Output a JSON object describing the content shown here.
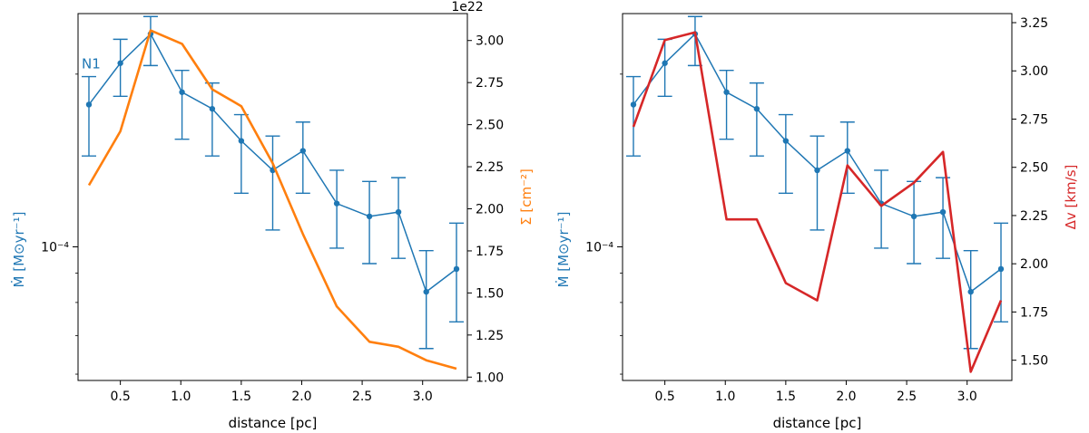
{
  "colors": {
    "mdot": "#1f77b4",
    "sigma": "#ff7f0e",
    "dv": "#d62728",
    "axis": "#000000"
  },
  "chart_data": [
    {
      "type": "line",
      "xlabel": "distance [pc]",
      "x_ticks": [
        "0.5",
        "1.0",
        "1.5",
        "2.0",
        "2.5",
        "3.0"
      ],
      "xlim": [
        0.15,
        3.37
      ],
      "annotation": "N1",
      "left_axis": {
        "label_text": "Ṁ [M⊙yr⁻¹]",
        "tick_label": "10⁻⁴",
        "tick_value": 0.0001,
        "scale": "log",
        "ylim": [
          5.85e-05,
          0.000255
        ]
      },
      "right_axis": {
        "label_text": "Σ [cm⁻²]",
        "offset_text": "1e22",
        "ticks": [
          "1.00",
          "1.25",
          "1.50",
          "1.75",
          "2.00",
          "2.25",
          "2.50",
          "2.75",
          "3.00"
        ],
        "ylim": [
          0.98,
          3.16
        ]
      },
      "series": [
        {
          "name": "Mdot",
          "axis": "left",
          "x": [
            0.24,
            0.5,
            0.75,
            1.01,
            1.26,
            1.5,
            1.76,
            2.01,
            2.29,
            2.56,
            2.8,
            3.03,
            3.28
          ],
          "values": [
            0.000177,
            0.000209,
            0.000235,
            0.000186,
            0.000174,
            0.000153,
            0.000136,
            0.000147,
            0.000119,
            0.000113,
            0.000115,
            8.35e-05,
            9.15e-05
          ],
          "err_low": [
            0.000144,
            0.000183,
            0.000207,
            0.000154,
            0.000144,
            0.000124,
            0.000107,
            0.000124,
            9.95e-05,
            9.35e-05,
            9.55e-05,
            6.65e-05,
            7.4e-05
          ],
          "err_high": [
            0.000198,
            0.00023,
            0.000252,
            0.000203,
            0.000193,
            0.00017,
            0.000156,
            0.000165,
            0.000136,
            0.00013,
            0.000132,
            9.85e-05,
            0.00011
          ]
        },
        {
          "name": "Sigma",
          "axis": "right",
          "x": [
            0.24,
            0.5,
            0.75,
            1.01,
            1.26,
            1.5,
            1.76,
            2.01,
            2.29,
            2.56,
            2.8,
            3.03,
            3.28
          ],
          "values": [
            2.14,
            2.46,
            3.06,
            2.98,
            2.71,
            2.61,
            2.27,
            1.85,
            1.42,
            1.21,
            1.18,
            1.1,
            1.05
          ]
        }
      ]
    },
    {
      "type": "line",
      "xlabel": "distance [pc]",
      "x_ticks": [
        "0.5",
        "1.0",
        "1.5",
        "2.0",
        "2.5",
        "3.0"
      ],
      "xlim": [
        0.15,
        3.37
      ],
      "left_axis": {
        "label_text": "Ṁ [M⊙yr⁻¹]",
        "tick_label": "10⁻⁴",
        "tick_value": 0.0001,
        "scale": "log",
        "ylim": [
          5.85e-05,
          0.000255
        ]
      },
      "right_axis": {
        "label_text": "Δv [km/s]",
        "ticks": [
          "1.50",
          "1.75",
          "2.00",
          "2.25",
          "2.50",
          "2.75",
          "3.00",
          "3.25"
        ],
        "ylim": [
          1.395,
          3.297
        ]
      },
      "series": [
        {
          "name": "Mdot",
          "axis": "left",
          "x": [
            0.24,
            0.5,
            0.75,
            1.01,
            1.26,
            1.5,
            1.76,
            2.01,
            2.29,
            2.56,
            2.8,
            3.03,
            3.28
          ],
          "values": [
            0.000177,
            0.000209,
            0.000235,
            0.000186,
            0.000174,
            0.000153,
            0.000136,
            0.000147,
            0.000119,
            0.000113,
            0.000115,
            8.35e-05,
            9.15e-05
          ],
          "err_low": [
            0.000144,
            0.000183,
            0.000207,
            0.000154,
            0.000144,
            0.000124,
            0.000107,
            0.000124,
            9.95e-05,
            9.35e-05,
            9.55e-05,
            6.65e-05,
            7.4e-05
          ],
          "err_high": [
            0.000198,
            0.00023,
            0.000252,
            0.000203,
            0.000193,
            0.00017,
            0.000156,
            0.000165,
            0.000136,
            0.00013,
            0.000132,
            9.85e-05,
            0.00011
          ]
        },
        {
          "name": "Delta v",
          "axis": "right",
          "x": [
            0.24,
            0.5,
            0.75,
            1.01,
            1.26,
            1.5,
            1.76,
            2.01,
            2.29,
            2.56,
            2.8,
            3.03,
            3.28
          ],
          "values": [
            2.71,
            3.16,
            3.2,
            2.23,
            2.23,
            1.9,
            1.81,
            2.51,
            2.3,
            2.42,
            2.58,
            1.44,
            1.81
          ]
        }
      ]
    }
  ]
}
